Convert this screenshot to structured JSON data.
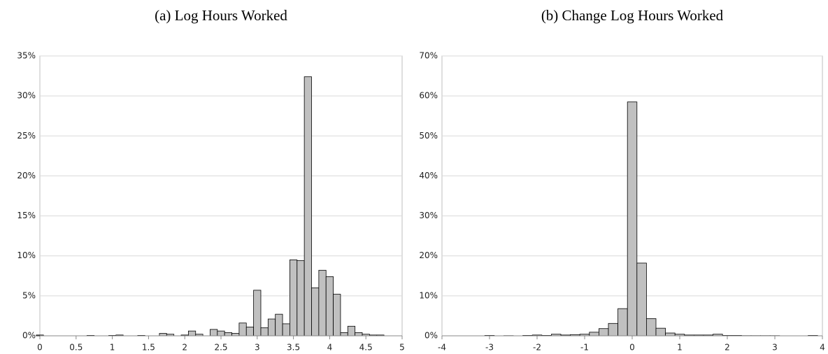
{
  "chart_data": [
    {
      "type": "histogram",
      "title": "(a) Log Hours Worked",
      "color": "#c0c0c0",
      "grid": true,
      "bins": [
        -0.05,
        0.05,
        0.15,
        0.25,
        0.35,
        0.45,
        0.55,
        0.65,
        0.75,
        0.85,
        0.95,
        1.05,
        1.15,
        1.25,
        1.35,
        1.45,
        1.55,
        1.65,
        1.75,
        1.85,
        1.95,
        2.05,
        2.15,
        2.25,
        2.35,
        2.45,
        2.55,
        2.65,
        2.75,
        2.85,
        2.95,
        3.05,
        3.15,
        3.25,
        3.35,
        3.45,
        3.55,
        3.65,
        3.75,
        3.85,
        3.95,
        4.05,
        4.15,
        4.25,
        4.35,
        4.45,
        4.55,
        4.65,
        4.75,
        4.85
      ],
      "values": [
        0.1,
        0,
        0,
        0,
        0,
        0,
        0,
        0.05,
        0,
        0,
        0.05,
        0.1,
        0,
        0,
        0.05,
        0,
        0,
        0.3,
        0.2,
        0,
        0.1,
        0.6,
        0.2,
        0,
        0.8,
        0.6,
        0.4,
        0.3,
        1.6,
        1.1,
        5.7,
        1.0,
        2.1,
        2.7,
        1.5,
        9.5,
        9.4,
        32.4,
        6.0,
        8.2,
        7.4,
        5.2,
        0.4,
        1.2,
        0.4,
        0.2,
        0.1,
        0.1,
        0
      ],
      "xlim": [
        0,
        5
      ],
      "xticks": [
        0,
        0.5,
        1,
        1.5,
        2,
        2.5,
        3,
        3.5,
        4,
        4.5,
        5
      ],
      "ylim": [
        0,
        35
      ],
      "yticks": [
        {
          "value": 0,
          "label": "0%"
        },
        {
          "value": 5,
          "label": "5%"
        },
        {
          "value": 10,
          "label": "10%"
        },
        {
          "value": 15,
          "label": "15%"
        },
        {
          "value": 20,
          "label": "20%"
        },
        {
          "value": 25,
          "label": "25%"
        },
        {
          "value": 30,
          "label": "30%"
        },
        {
          "value": 35,
          "label": "35%"
        }
      ]
    },
    {
      "type": "histogram",
      "title": "(b) Change Log Hours Worked",
      "color": "#c0c0c0",
      "grid": true,
      "bins": [
        -3.1,
        -2.9,
        -2.7,
        -2.5,
        -2.3,
        -2.1,
        -1.9,
        -1.7,
        -1.5,
        -1.3,
        -1.1,
        -0.9,
        -0.7,
        -0.5,
        -0.3,
        -0.1,
        0.1,
        0.3,
        0.5,
        0.7,
        0.9,
        1.1,
        1.3,
        1.5,
        1.7,
        1.9,
        2.1,
        2.3,
        2.5,
        2.7,
        2.9,
        3.1,
        3.3,
        3.5,
        3.7,
        3.9
      ],
      "values": [
        0.1,
        0,
        0.05,
        0,
        0.1,
        0.2,
        0.1,
        0.4,
        0.2,
        0.3,
        0.4,
        0.9,
        1.8,
        3.1,
        6.8,
        58.5,
        18.2,
        4.3,
        1.9,
        0.7,
        0.4,
        0.2,
        0.2,
        0.2,
        0.4,
        0.1,
        0.1,
        0.05,
        0.05,
        0.05,
        0.05,
        0,
        0,
        0,
        0.1
      ],
      "xlim": [
        -4,
        4
      ],
      "xticks": [
        -4,
        -3,
        -2,
        -1,
        0,
        1,
        2,
        3,
        4
      ],
      "ylim": [
        0,
        70
      ],
      "yticks": [
        {
          "value": 0,
          "label": "0%"
        },
        {
          "value": 10,
          "label": "10%"
        },
        {
          "value": 20,
          "label": "20%"
        },
        {
          "value": 30,
          "label": "30%"
        },
        {
          "value": 40,
          "label": "40%"
        },
        {
          "value": 50,
          "label": "50%"
        },
        {
          "value": 60,
          "label": "60%"
        },
        {
          "value": 70,
          "label": "70%"
        }
      ]
    }
  ]
}
